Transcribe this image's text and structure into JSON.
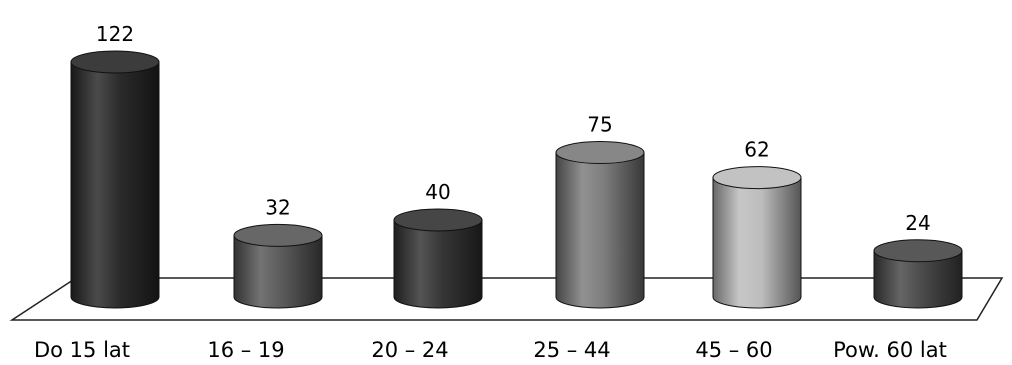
{
  "chart_data": {
    "type": "bar",
    "style": "3d-cylinder",
    "title": "",
    "xlabel": "",
    "ylabel": "",
    "grid": false,
    "legend": "none",
    "ylim": [
      0,
      122
    ],
    "categories": [
      "Do 15 lat",
      "16 – 19",
      "20 – 24",
      "25 – 44",
      "45 – 60",
      "Pow. 60 lat"
    ],
    "values": [
      122,
      32,
      40,
      75,
      62,
      24
    ],
    "data_labels": [
      "122",
      "32",
      "40",
      "75",
      "62",
      "24"
    ],
    "colors": [
      "#2b2b2b",
      "#5a5a5a",
      "#363636",
      "#7d7d7d",
      "#bdbdbd",
      "#4a4a4a"
    ]
  }
}
